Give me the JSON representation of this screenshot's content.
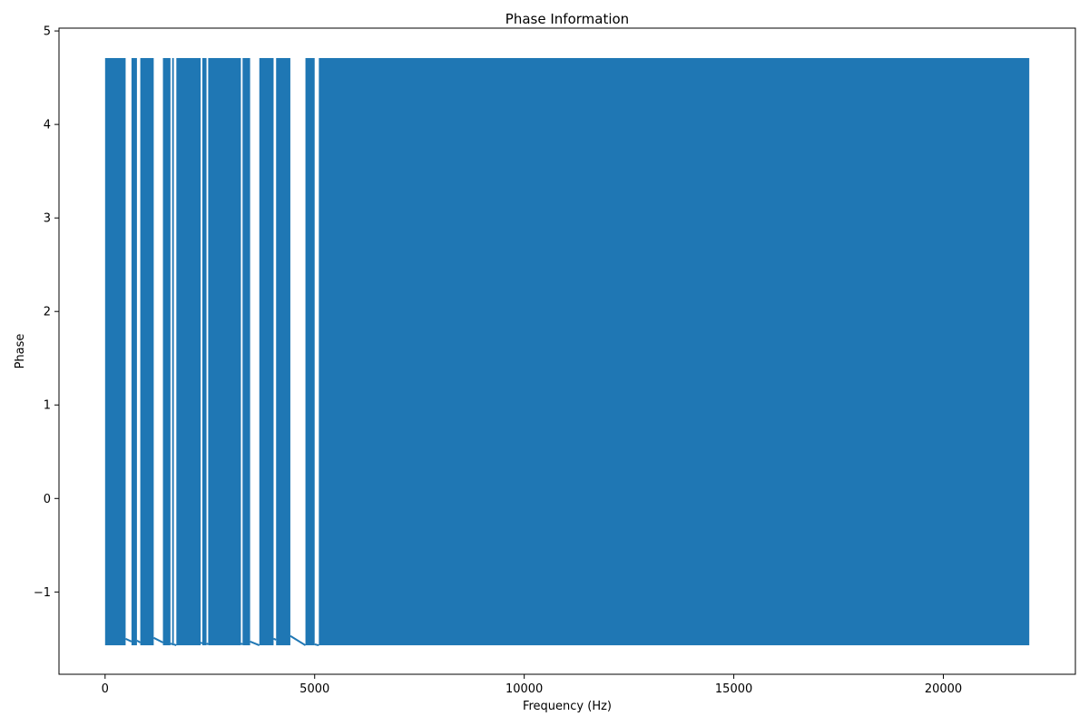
{
  "chart_data": {
    "type": "line",
    "title": "Phase Information",
    "xlabel": "Frequency (Hz)",
    "ylabel": "Phase",
    "xlim": [
      -1100,
      23150
    ],
    "ylim": [
      -1.88,
      5.03
    ],
    "xticks": [
      0,
      5000,
      10000,
      15000,
      20000
    ],
    "xtick_labels": [
      "0",
      "5000",
      "10000",
      "15000",
      "20000"
    ],
    "yticks": [
      -1,
      0,
      1,
      2,
      3,
      4,
      5
    ],
    "ytick_labels": [
      "−1",
      "0",
      "1",
      "2",
      "3",
      "4",
      "5"
    ],
    "grid": false,
    "legend": false,
    "line_color": "#1f77b4",
    "series": [
      {
        "phase_max": 4.71,
        "phase_min": -1.57,
        "x_range": [
          0,
          22050
        ],
        "dense_blocks": [
          [
            0,
            490
          ],
          [
            630,
            760
          ],
          [
            840,
            1160
          ],
          [
            1380,
            1560
          ],
          [
            1600,
            1640
          ],
          [
            1700,
            2280
          ],
          [
            2320,
            2420
          ],
          [
            2460,
            3240
          ],
          [
            3280,
            3460
          ],
          [
            3680,
            4020
          ],
          [
            4080,
            4420
          ],
          [
            4780,
            5000
          ],
          [
            5100,
            22050
          ]
        ],
        "gap_segments": [
          {
            "x": [
              490,
              630
            ],
            "y": [
              -1.5,
              -1.53
            ]
          },
          {
            "x": [
              760,
              840
            ],
            "y": [
              -1.52,
              -1.54
            ]
          },
          {
            "x": [
              1160,
              1380
            ],
            "y": [
              -1.49,
              -1.54
            ]
          },
          {
            "x": [
              1560,
              1600
            ],
            "y": [
              -1.55,
              -1.56
            ]
          },
          {
            "x": [
              1640,
              1700
            ],
            "y": [
              -1.56,
              -1.57
            ]
          },
          {
            "x": [
              2280,
              2320
            ],
            "y": [
              -1.54,
              -1.55
            ]
          },
          {
            "x": [
              2420,
              2460
            ],
            "y": [
              -1.55,
              -1.56
            ]
          },
          {
            "x": [
              3240,
              3280
            ],
            "y": [
              -1.55,
              -1.56
            ]
          },
          {
            "x": [
              3460,
              3680
            ],
            "y": [
              -1.53,
              -1.57
            ]
          },
          {
            "x": [
              4020,
              4080
            ],
            "y": [
              -1.5,
              -1.51
            ]
          },
          {
            "x": [
              4420,
              4780
            ],
            "y": [
              -1.47,
              -1.57
            ]
          },
          {
            "x": [
              5000,
              5100
            ],
            "y": [
              -1.56,
              -1.57
            ]
          }
        ]
      }
    ]
  }
}
